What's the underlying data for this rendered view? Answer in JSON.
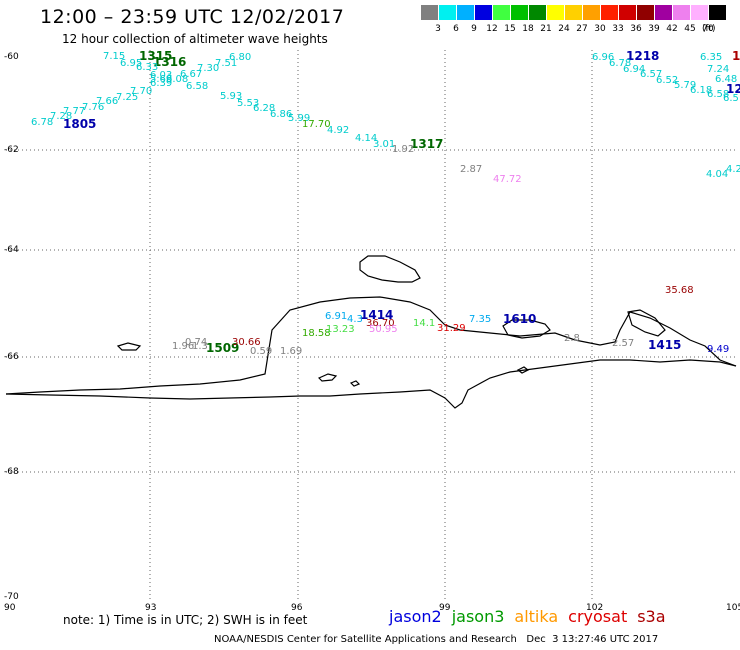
{
  "header": {
    "title": "12:00 – 23:59 UTC 12/02/2017",
    "subtitle": "12 hour collection of altimeter wave heights"
  },
  "legend": {
    "unit": "(ft)",
    "swatches": [
      {
        "color": "#808080",
        "label": "3"
      },
      {
        "color": "#00f0f0",
        "label": "6"
      },
      {
        "color": "#00b0ff",
        "label": "9"
      },
      {
        "color": "#0000e0",
        "label": "12"
      },
      {
        "color": "#40ff40",
        "label": "15"
      },
      {
        "color": "#00c000",
        "label": "18"
      },
      {
        "color": "#008800",
        "label": "21"
      },
      {
        "color": "#ffff00",
        "label": "24"
      },
      {
        "color": "#ffd000",
        "label": "27"
      },
      {
        "color": "#ffa000",
        "label": "30"
      },
      {
        "color": "#ff2000",
        "label": "33"
      },
      {
        "color": "#d00000",
        "label": "36"
      },
      {
        "color": "#900000",
        "label": "39"
      },
      {
        "color": "#a000a0",
        "label": "42"
      },
      {
        "color": "#ee80ee",
        "label": "45"
      },
      {
        "color": "#ffb0ff",
        "label": "70"
      },
      {
        "color": "#000000",
        "label": ""
      }
    ]
  },
  "axes": {
    "lat_labels": [
      "-60",
      "-62",
      "-64",
      "-66",
      "-68",
      "-70"
    ],
    "lon_labels": [
      "90",
      "93",
      "96",
      "99",
      "102",
      "105"
    ]
  },
  "times": [
    {
      "text": "1315",
      "color": "#006600"
    },
    {
      "text": "1316",
      "color": "#006600"
    },
    {
      "text": "1805",
      "color": "#0000aa"
    },
    {
      "text": "1317",
      "color": "#006600"
    },
    {
      "text": "1218",
      "color": "#0000aa"
    },
    {
      "text": "12",
      "color": "#0000aa"
    },
    {
      "text": "1",
      "color": "#aa0000"
    },
    {
      "text": "1414",
      "color": "#0000aa"
    },
    {
      "text": "1610",
      "color": "#0000aa"
    },
    {
      "text": "1415",
      "color": "#0000aa"
    },
    {
      "text": "1509",
      "color": "#006600"
    }
  ],
  "values": [
    {
      "text": "7.15",
      "color": "#00cccc"
    },
    {
      "text": "6.95",
      "color": "#00cccc"
    },
    {
      "text": "6.33",
      "color": "#00cccc"
    },
    {
      "text": "7.30",
      "color": "#00cccc"
    },
    {
      "text": "7.51",
      "color": "#00cccc"
    },
    {
      "text": "6.80",
      "color": "#00cccc"
    },
    {
      "text": "6.03",
      "color": "#00cccc"
    },
    {
      "text": "6.67",
      "color": "#00cccc"
    },
    {
      "text": "6.39",
      "color": "#00cccc"
    },
    {
      "text": "6.08",
      "color": "#00cccc"
    },
    {
      "text": "6.58",
      "color": "#00cccc"
    },
    {
      "text": "5.69",
      "color": "#00cccc"
    },
    {
      "text": "5.93",
      "color": "#00cccc"
    },
    {
      "text": "5.53",
      "color": "#00cccc"
    },
    {
      "text": "7.70",
      "color": "#00cccc"
    },
    {
      "text": "7.25",
      "color": "#00cccc"
    },
    {
      "text": "7.66",
      "color": "#00cccc"
    },
    {
      "text": "7.76",
      "color": "#00cccc"
    },
    {
      "text": "7.77",
      "color": "#00cccc"
    },
    {
      "text": "7.28",
      "color": "#00cccc"
    },
    {
      "text": "6.78",
      "color": "#00cccc"
    },
    {
      "text": "6.28",
      "color": "#00cccc"
    },
    {
      "text": "6.86",
      "color": "#00cccc"
    },
    {
      "text": "5.99",
      "color": "#00cccc"
    },
    {
      "text": "17.70",
      "color": "#33aa00"
    },
    {
      "text": "4.92",
      "color": "#00cccc"
    },
    {
      "text": "4.14",
      "color": "#00cccc"
    },
    {
      "text": "3.01",
      "color": "#00cccc"
    },
    {
      "text": "1.92",
      "color": "#808080"
    },
    {
      "text": "2.87",
      "color": "#808080"
    },
    {
      "text": "47.72",
      "color": "#ee80ee"
    },
    {
      "text": "6.96",
      "color": "#00cccc"
    },
    {
      "text": "6.78",
      "color": "#00cccc"
    },
    {
      "text": "6.94",
      "color": "#00cccc"
    },
    {
      "text": "6.57",
      "color": "#00cccc"
    },
    {
      "text": "6.52",
      "color": "#00cccc"
    },
    {
      "text": "5.79",
      "color": "#00cccc"
    },
    {
      "text": "6.18",
      "color": "#00cccc"
    },
    {
      "text": "6.58",
      "color": "#00cccc"
    },
    {
      "text": "6.35",
      "color": "#00cccc"
    },
    {
      "text": "7.24",
      "color": "#00cccc"
    },
    {
      "text": "6.48",
      "color": "#00cccc"
    },
    {
      "text": "6.5",
      "color": "#00cccc"
    },
    {
      "text": "4.04",
      "color": "#00cccc"
    },
    {
      "text": "4.2",
      "color": "#00cccc"
    },
    {
      "text": "35.68",
      "color": "#990000"
    },
    {
      "text": "6.91",
      "color": "#00aaee"
    },
    {
      "text": "4.3",
      "color": "#00aaee"
    },
    {
      "text": "36.70",
      "color": "#990000"
    },
    {
      "text": "50.95",
      "color": "#ee80ee"
    },
    {
      "text": "18.58",
      "color": "#33aa00"
    },
    {
      "text": "13.23",
      "color": "#44dd44"
    },
    {
      "text": "14.1",
      "color": "#44dd44"
    },
    {
      "text": "31.29",
      "color": "#dd0000"
    },
    {
      "text": "7.35",
      "color": "#00aaee"
    },
    {
      "text": "2.8",
      "color": "#808080"
    },
    {
      "text": "2.57",
      "color": "#808080"
    },
    {
      "text": "9.49",
      "color": "#0000cc"
    },
    {
      "text": "1.96",
      "color": "#808080"
    },
    {
      "text": "1.3",
      "color": "#808080"
    },
    {
      "text": "0.74",
      "color": "#808080"
    },
    {
      "text": "30.66",
      "color": "#990000"
    },
    {
      "text": "0.59",
      "color": "#808080"
    },
    {
      "text": "1.69",
      "color": "#808080"
    }
  ],
  "footer": {
    "note": "note: 1) Time is in UTC; 2) SWH is in feet",
    "satellites": [
      {
        "name": "jason2",
        "color": "#0000dd"
      },
      {
        "name": "jason3",
        "color": "#009900"
      },
      {
        "name": "altika",
        "color": "#ff9900"
      },
      {
        "name": "cryosat",
        "color": "#dd0000"
      },
      {
        "name": "s3a",
        "color": "#aa0000"
      }
    ],
    "credit": "NOAA/NESDIS Center for Satellite Applications and Research   Dec  3 13:27:46 UTC 2017"
  }
}
